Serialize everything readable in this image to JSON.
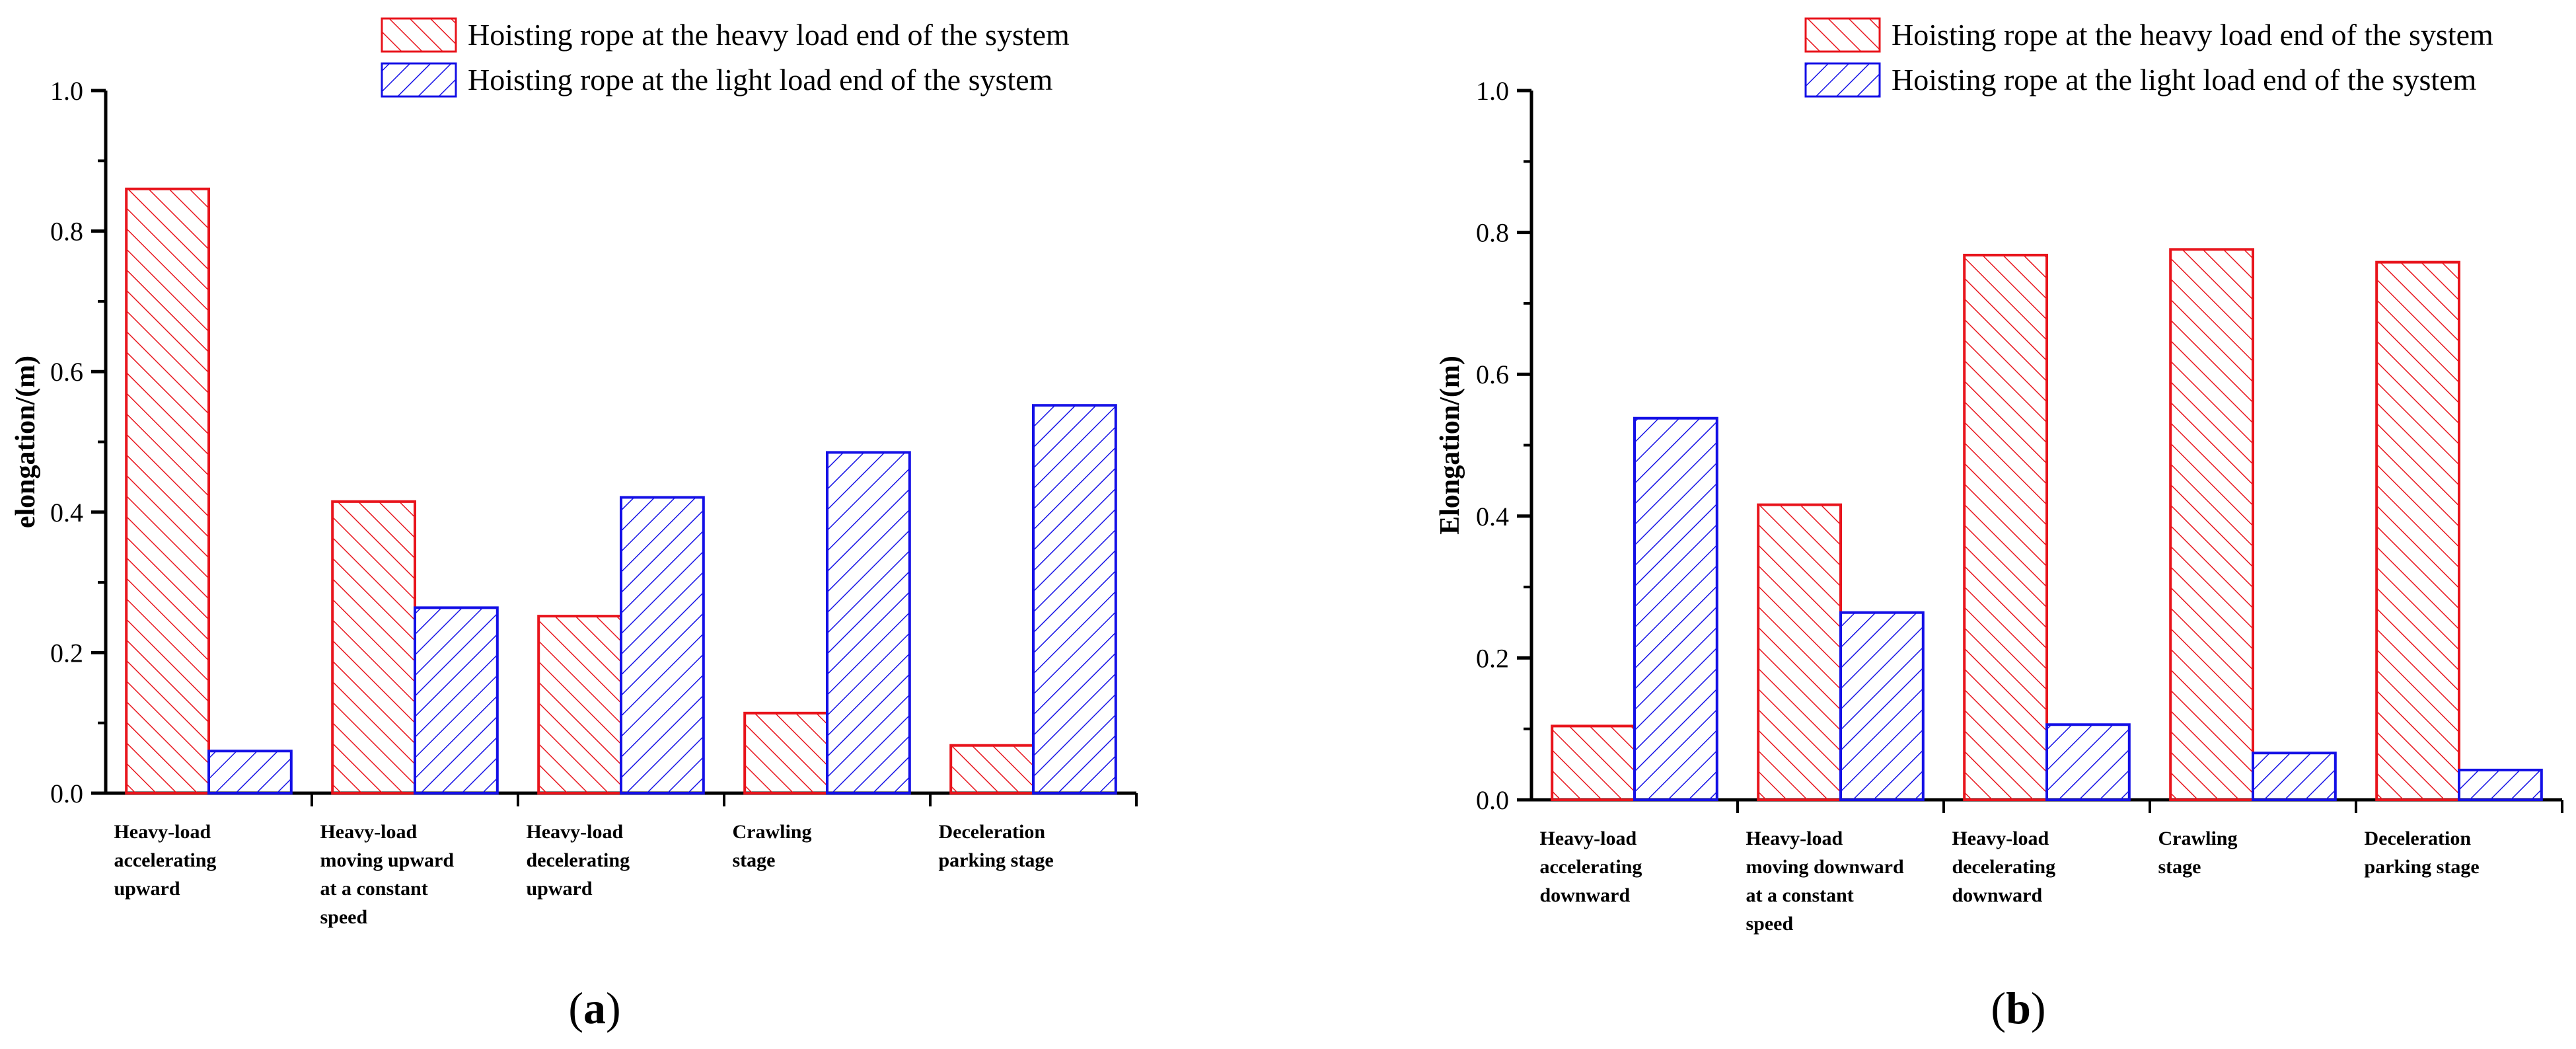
{
  "chart_data": [
    {
      "type": "bar",
      "panel": "a",
      "ylabel": "elongation/(m)",
      "xlabel": "",
      "ylim": [
        0,
        1.0
      ],
      "yticks": [
        "0.0",
        "0.2",
        "0.4",
        "0.6",
        "0.8",
        "1.0"
      ],
      "categories": [
        [
          "Heavy-load",
          "accelerating",
          "upward"
        ],
        [
          "Heavy-load",
          "moving upward",
          "at a constant",
          "speed"
        ],
        [
          "Heavy-load",
          "decelerating",
          "upward"
        ],
        [
          "Crawling",
          "stage"
        ],
        [
          "Deceleration",
          "parking stage"
        ]
      ],
      "series": [
        {
          "name": "Hoisting rope at the heavy load end of the system",
          "color": "#e8141c",
          "hatch": "forward",
          "values": [
            0.86,
            0.415,
            0.252,
            0.114,
            0.068
          ]
        },
        {
          "name": "Hoisting rope at the light load end of the system",
          "color": "#1410e6",
          "hatch": "backward",
          "values": [
            0.06,
            0.264,
            0.421,
            0.485,
            0.552
          ]
        }
      ],
      "legend_position": "top-right"
    },
    {
      "type": "bar",
      "panel": "b",
      "ylabel": "Elongation/(m)",
      "xlabel": "",
      "ylim": [
        0,
        1.0
      ],
      "yticks": [
        "0.0",
        "0.2",
        "0.4",
        "0.6",
        "0.8",
        "1.0"
      ],
      "categories": [
        [
          "Heavy-load",
          "accelerating",
          "downward"
        ],
        [
          "Heavy-load",
          "moving downward",
          "at a constant",
          "speed"
        ],
        [
          "Heavy-load",
          "decelerating",
          "downward"
        ],
        [
          "Crawling",
          "stage"
        ],
        [
          "Deceleration",
          "parking stage"
        ]
      ],
      "series": [
        {
          "name": "Hoisting rope at the heavy load end of the system",
          "color": "#e8141c",
          "hatch": "forward",
          "values": [
            0.104,
            0.416,
            0.768,
            0.776,
            0.758
          ]
        },
        {
          "name": "Hoisting rope at the light load end of the system",
          "color": "#1410e6",
          "hatch": "backward",
          "values": [
            0.538,
            0.264,
            0.106,
            0.066,
            0.042
          ]
        }
      ],
      "legend_position": "top-right"
    }
  ],
  "panel_labels": [
    {
      "open": "(",
      "letter": "a",
      "close": ")"
    },
    {
      "open": "(",
      "letter": "b",
      "close": ")"
    }
  ]
}
